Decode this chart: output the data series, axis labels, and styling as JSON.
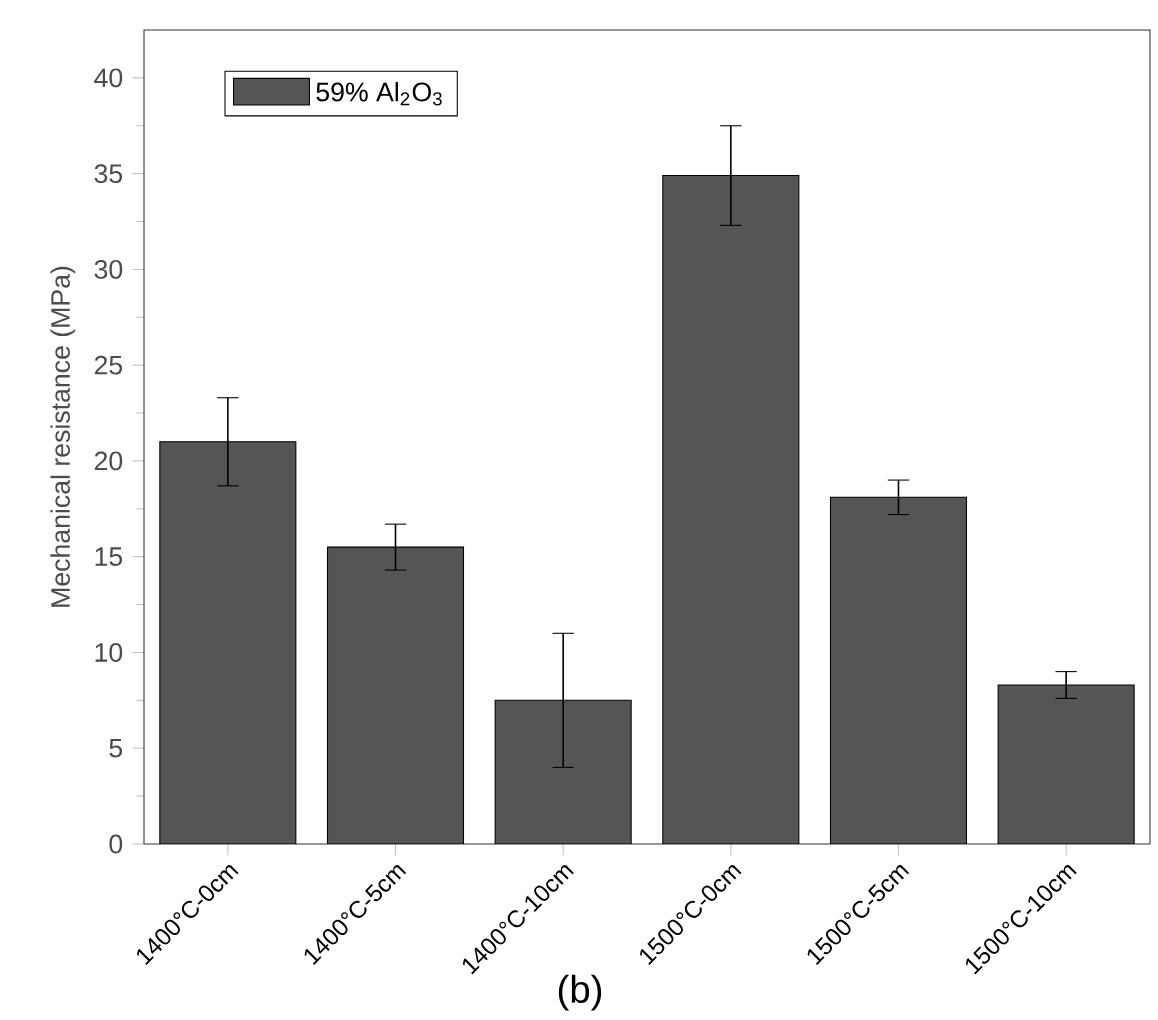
{
  "chart_data": {
    "type": "bar",
    "ylabel": "Mechanical resistance (MPa)",
    "categories": [
      "1400°C-0cm",
      "1400°C-5cm",
      "1400°C-10cm",
      "1500°C-0cm",
      "1500°C-5cm",
      "1500°C-10cm"
    ],
    "series": [
      {
        "name": "59% Al$_{2}$O$_{3}$",
        "color": "#555555",
        "values": [
          21.0,
          15.5,
          7.5,
          34.9,
          18.1,
          8.3
        ],
        "errors": [
          2.3,
          1.2,
          3.5,
          2.6,
          0.9,
          0.7
        ]
      }
    ],
    "ylim": [
      0,
      42.5
    ],
    "yticks": [
      0,
      5,
      10,
      15,
      20,
      25,
      30,
      35,
      40
    ],
    "legend": "top left",
    "grid": false,
    "annotations": [
      "(b)"
    ]
  }
}
